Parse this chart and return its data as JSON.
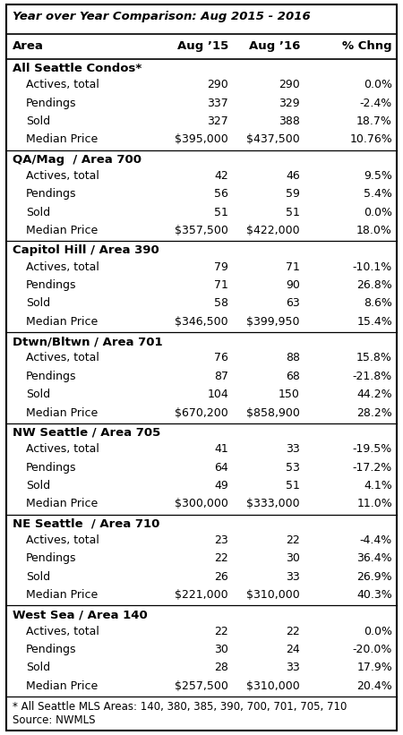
{
  "title": "Year over Year Comparison: Aug 2015 - 2016",
  "headers": [
    "Area",
    "Aug ’15",
    "Aug ’16",
    "% Chng"
  ],
  "sections": [
    {
      "area": "All Seattle Condos*",
      "rows": [
        [
          "Actives, total",
          "290",
          "290",
          "0.0%"
        ],
        [
          "Pendings",
          "337",
          "329",
          "-2.4%"
        ],
        [
          "Sold",
          "327",
          "388",
          "18.7%"
        ],
        [
          "Median Price",
          "$395,000",
          "$437,500",
          "10.76%"
        ]
      ]
    },
    {
      "area": "QA/Mag  / Area 700",
      "rows": [
        [
          "Actives, total",
          "42",
          "46",
          "9.5%"
        ],
        [
          "Pendings",
          "56",
          "59",
          "5.4%"
        ],
        [
          "Sold",
          "51",
          "51",
          "0.0%"
        ],
        [
          "Median Price",
          "$357,500",
          "$422,000",
          "18.0%"
        ]
      ]
    },
    {
      "area": "Capitol Hill / Area 390",
      "rows": [
        [
          "Actives, total",
          "79",
          "71",
          "-10.1%"
        ],
        [
          "Pendings",
          "71",
          "90",
          "26.8%"
        ],
        [
          "Sold",
          "58",
          "63",
          "8.6%"
        ],
        [
          "Median Price",
          "$346,500",
          "$399,950",
          "15.4%"
        ]
      ]
    },
    {
      "area": "Dtwn/Bltwn / Area 701",
      "rows": [
        [
          "Actives, total",
          "76",
          "88",
          "15.8%"
        ],
        [
          "Pendings",
          "87",
          "68",
          "-21.8%"
        ],
        [
          "Sold",
          "104",
          "150",
          "44.2%"
        ],
        [
          "Median Price",
          "$670,200",
          "$858,900",
          "28.2%"
        ]
      ]
    },
    {
      "area": "NW Seattle / Area 705",
      "rows": [
        [
          "Actives, total",
          "41",
          "33",
          "-19.5%"
        ],
        [
          "Pendings",
          "64",
          "53",
          "-17.2%"
        ],
        [
          "Sold",
          "49",
          "51",
          "4.1%"
        ],
        [
          "Median Price",
          "$300,000",
          "$333,000",
          "11.0%"
        ]
      ]
    },
    {
      "area": "NE Seattle  / Area 710",
      "rows": [
        [
          "Actives, total",
          "23",
          "22",
          "-4.4%"
        ],
        [
          "Pendings",
          "22",
          "30",
          "36.4%"
        ],
        [
          "Sold",
          "26",
          "33",
          "26.9%"
        ],
        [
          "Median Price",
          "$221,000",
          "$310,000",
          "40.3%"
        ]
      ]
    },
    {
      "area": "West Sea / Area 140",
      "rows": [
        [
          "Actives, total",
          "22",
          "22",
          "0.0%"
        ],
        [
          "Pendings",
          "30",
          "24",
          "-20.0%"
        ],
        [
          "Sold",
          "28",
          "33",
          "17.9%"
        ],
        [
          "Median Price",
          "$257,500",
          "$310,000",
          "20.4%"
        ]
      ]
    }
  ],
  "footnotes": [
    "* All Seattle MLS Areas: 140, 380, 385, 390, 700, 701, 705, 710",
    "Source: NWMLS"
  ],
  "border_color": "#000000",
  "bg_color": "#ffffff",
  "title_fontsize": 9.5,
  "header_fontsize": 9.5,
  "area_fontsize": 9.5,
  "data_fontsize": 9.0,
  "footnote_fontsize": 8.5
}
